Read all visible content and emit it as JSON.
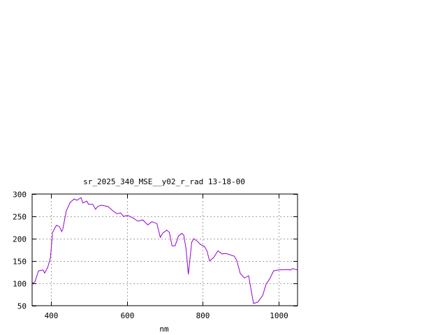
{
  "chart_data": {
    "type": "line",
    "title": "sr_2025_340_MSE__y02_r_rad 13-18-00",
    "xlabel": "nm",
    "ylabel": "",
    "xlim": [
      350,
      1050
    ],
    "ylim": [
      50,
      300
    ],
    "xticks": [
      400,
      600,
      800,
      1000
    ],
    "yticks": [
      50,
      100,
      150,
      200,
      250,
      300
    ],
    "grid": true,
    "line_color": "#9400d3",
    "series": [
      {
        "x": [
          350,
          357,
          367,
          379,
          383,
          391,
          398,
          404,
          414,
          422,
          428,
          431,
          440,
          450,
          461,
          468,
          479,
          484,
          494,
          499,
          510,
          517,
          523,
          532,
          550,
          565,
          574,
          583,
          591,
          602,
          615,
          629,
          642,
          655,
          666,
          679,
          688,
          694,
          705,
          712,
          719,
          727,
          736,
          745,
          750,
          756,
          762,
          767,
          771,
          776,
          785,
          794,
          804,
          811,
          818,
          829,
          840,
          851,
          861,
          883,
          890,
          899,
          910,
          921,
          928,
          934,
          945,
          958,
          967,
          976,
          987,
          1000,
          1024,
          1031,
          1037,
          1050
        ],
        "y": [
          100,
          103,
          128,
          130,
          123,
          136,
          156,
          214,
          230,
          227,
          216,
          222,
          262,
          281,
          289,
          286,
          292,
          280,
          284,
          277,
          277,
          266,
          272,
          275,
          272,
          261,
          256,
          258,
          250,
          252,
          247,
          239,
          242,
          231,
          238,
          234,
          203,
          212,
          219,
          214,
          184,
          184,
          206,
          212,
          208,
          177,
          120,
          161,
          192,
          200,
          195,
          187,
          183,
          173,
          150,
          158,
          173,
          166,
          167,
          161,
          151,
          122,
          112,
          117,
          83,
          55,
          58,
          73,
          98,
          109,
          128,
          130,
          131,
          130,
          133,
          130
        ]
      }
    ]
  }
}
